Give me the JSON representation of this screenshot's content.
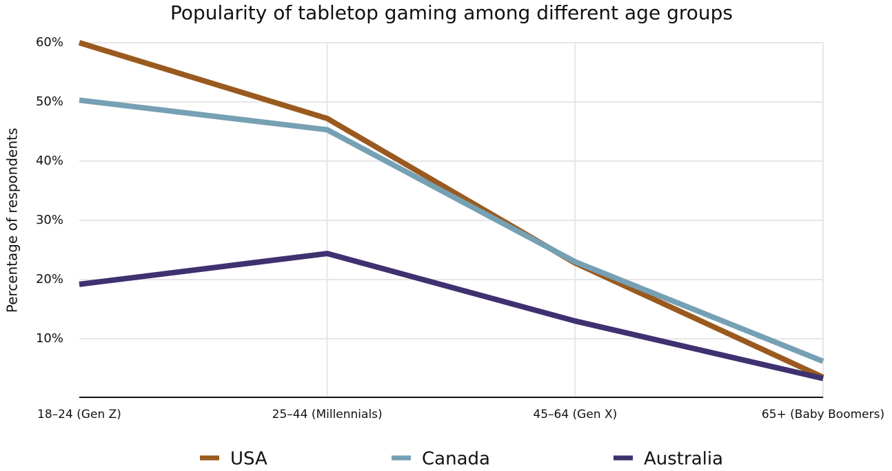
{
  "chart_data": {
    "type": "line",
    "title": "Popularity of tabletop gaming among different age groups",
    "y_label": "Percentage of respondents",
    "categories": [
      "18–24 (Gen Z)",
      "25–44 (Millennials)",
      "45–64 (Gen X)",
      "65+ (Baby Boomers)"
    ],
    "series": [
      {
        "name": "USA",
        "color": "#9a5a1f",
        "values": [
          60,
          47.2,
          22.8,
          3.5
        ]
      },
      {
        "name": "Canada",
        "color": "#76a0b3",
        "values": [
          50.3,
          45.3,
          23.0,
          6.2
        ]
      },
      {
        "name": "Australia",
        "color": "#3f3170",
        "values": [
          19.2,
          24.4,
          13.0,
          3.3
        ]
      }
    ],
    "ylim": [
      0,
      60
    ],
    "yticks": [
      {
        "value": 10,
        "label": "10%"
      },
      {
        "value": 20,
        "label": "20%"
      },
      {
        "value": 30,
        "label": "30%"
      },
      {
        "value": 40,
        "label": "40%"
      },
      {
        "value": 50,
        "label": "50%"
      },
      {
        "value": 60,
        "label": "60%"
      }
    ],
    "grid": true,
    "legend": "bottom"
  }
}
